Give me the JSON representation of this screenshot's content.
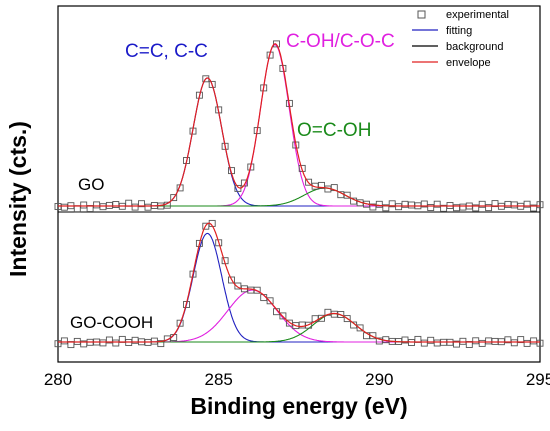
{
  "chart_data": {
    "type": "line",
    "xlabel": "Binding energy (eV)",
    "ylabel": "Intensity (cts.)",
    "xlim": [
      280,
      295
    ],
    "x_ticks": [
      "280",
      "285",
      "290",
      "295"
    ],
    "grid": false,
    "legend": {
      "placement": "top-right",
      "items": [
        {
          "label": "experimental",
          "marker": "open-square",
          "color": "#555555"
        },
        {
          "label": "fitting",
          "color": "#2020c0"
        },
        {
          "label": "background",
          "color": "#000000"
        },
        {
          "label": "envelope",
          "color": "#e02020"
        }
      ]
    },
    "panels": [
      {
        "label": "GO",
        "baseline": 0.0,
        "peaks": [
          {
            "name": "C=C, C-C",
            "center": 284.65,
            "fwhm": 1.05,
            "height": 1.0,
            "color": "#2020c0"
          },
          {
            "name": "C-OH/C-O-C",
            "center": 286.75,
            "fwhm": 1.05,
            "height": 1.26,
            "color": "#e020e0"
          },
          {
            "name": "O=C-OH",
            "center": 288.3,
            "fwhm": 1.5,
            "height": 0.14,
            "color": "#1a8a1a"
          }
        ],
        "annotations": [
          {
            "text": "C=C, C-C",
            "color": "#1a1ac8"
          },
          {
            "text": "C-OH/C-O-C",
            "color": "#e020e0"
          },
          {
            "text": "O=C-OH",
            "color": "#1a8a1a"
          }
        ]
      },
      {
        "label": "GO-COOH",
        "baseline": 0.0,
        "peaks": [
          {
            "name": "C=C, C-C",
            "center": 284.65,
            "fwhm": 1.05,
            "height": 0.92,
            "color": "#2020c0"
          },
          {
            "name": "C-OH/C-O-C",
            "center": 286.05,
            "fwhm": 1.8,
            "height": 0.44,
            "color": "#e020e0"
          },
          {
            "name": "O=C-OH",
            "center": 288.6,
            "fwhm": 1.55,
            "height": 0.24,
            "color": "#1a8a1a"
          }
        ]
      }
    ]
  }
}
